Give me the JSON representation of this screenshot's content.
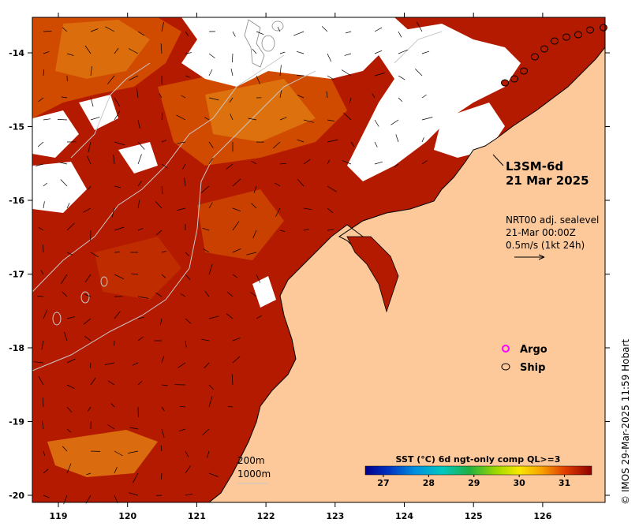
{
  "product": {
    "title_line1": "L3SM-6d",
    "title_line2": "21 Mar 2025"
  },
  "currents": {
    "line1": "NRT00 adj. sealevel",
    "line2": "21-Mar 00:00Z",
    "line3": "0.5m/s (1kt 24h)"
  },
  "legend": {
    "argo_label": "Argo",
    "ship_label": "Ship",
    "argo_color": "#ff00ff"
  },
  "isobaths": {
    "label1": "200m",
    "label2": "1000m"
  },
  "colorbar": {
    "title": "SST (°C) 6d ngt-only comp QL>=3",
    "ticks": [
      "27",
      "28",
      "29",
      "30",
      "31"
    ],
    "vmin": 26.6,
    "vmax": 31.6
  },
  "axes": {
    "lon_ticks": [
      "119",
      "120",
      "121",
      "122",
      "123",
      "124",
      "125",
      "126"
    ],
    "lat_ticks": [
      "-14",
      "-15",
      "-16",
      "-17",
      "-18",
      "-19",
      "-20"
    ]
  },
  "credit": "© IMOS 29-Mar-2025 11:59 Hobart",
  "colors": {
    "land": "#fdc99a",
    "sst_hot": "#b31a00",
    "sst_warm": "#d04a00",
    "sst_orange": "#e07a10",
    "cloud": "#ffffff"
  }
}
